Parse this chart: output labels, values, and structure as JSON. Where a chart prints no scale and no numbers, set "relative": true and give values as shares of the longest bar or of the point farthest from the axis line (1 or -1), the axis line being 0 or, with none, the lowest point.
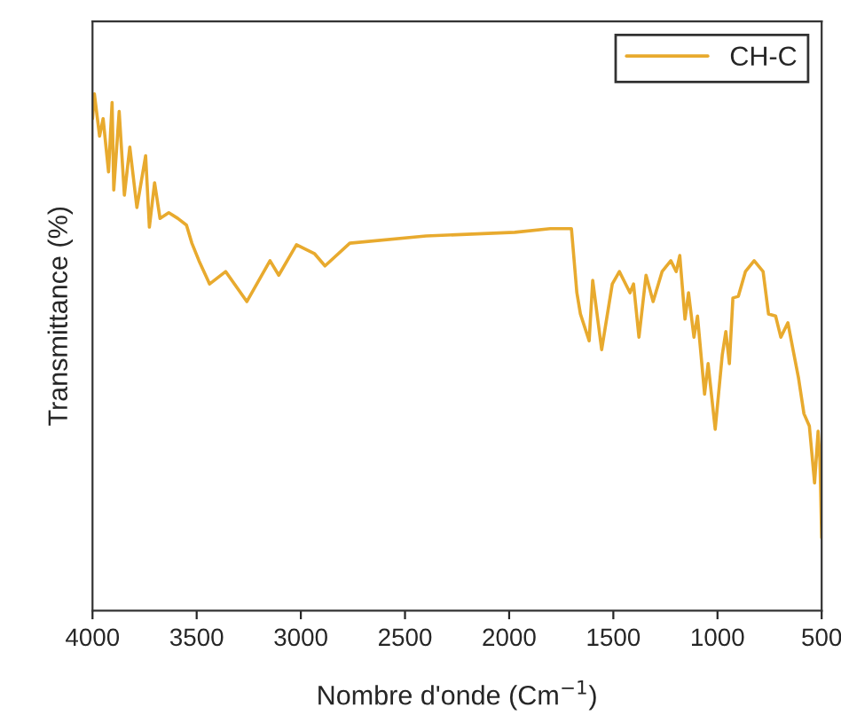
{
  "chart_data": {
    "type": "line",
    "xlabel": "Nombre d'onde (Cm$^{−1}$)",
    "ylabel": "Transmittance (%)",
    "relative": true,
    "xlim": [
      4000,
      500
    ],
    "xticks": [
      4000,
      3500,
      3000,
      2500,
      2000,
      1500,
      1000,
      500
    ],
    "legend": "top right",
    "grid": false,
    "marker": "none",
    "line_style": "solid",
    "series": [
      {
        "name": "CH-C",
        "color": "#e8aa2e",
        "x": [
          4000,
          3991,
          3966,
          3949,
          3923,
          3906,
          3898,
          3872,
          3847,
          3821,
          3787,
          3745,
          3727,
          3702,
          3676,
          3634,
          3591,
          3549,
          3523,
          3489,
          3446,
          3438,
          3361,
          3259,
          3148,
          3106,
          3021,
          2935,
          2884,
          2765,
          2399,
          1973,
          1803,
          1701,
          1675,
          1658,
          1616,
          1599,
          1556,
          1505,
          1471,
          1420,
          1403,
          1377,
          1343,
          1309,
          1266,
          1224,
          1198,
          1181,
          1156,
          1139,
          1113,
          1096,
          1062,
          1045,
          1011,
          977,
          960,
          943,
          926,
          900,
          866,
          824,
          781,
          755,
          721,
          696,
          662,
          636,
          611,
          585,
          559,
          534,
          517,
          508,
          500
        ],
        "values": [
          0.952,
          1.0,
          0.918,
          0.952,
          0.849,
          0.983,
          0.814,
          0.966,
          0.804,
          0.897,
          0.78,
          0.88,
          0.742,
          0.828,
          0.759,
          0.77,
          0.759,
          0.746,
          0.711,
          0.677,
          0.639,
          0.632,
          0.656,
          0.598,
          0.677,
          0.649,
          0.708,
          0.691,
          0.667,
          0.711,
          0.725,
          0.732,
          0.739,
          0.739,
          0.615,
          0.574,
          0.522,
          0.639,
          0.505,
          0.632,
          0.656,
          0.615,
          0.632,
          0.529,
          0.649,
          0.598,
          0.656,
          0.677,
          0.656,
          0.687,
          0.564,
          0.615,
          0.529,
          0.57,
          0.419,
          0.478,
          0.351,
          0.495,
          0.54,
          0.478,
          0.605,
          0.608,
          0.656,
          0.677,
          0.656,
          0.574,
          0.57,
          0.529,
          0.557,
          0.502,
          0.45,
          0.381,
          0.357,
          0.247,
          0.347,
          0.289,
          0.141
        ]
      }
    ]
  }
}
